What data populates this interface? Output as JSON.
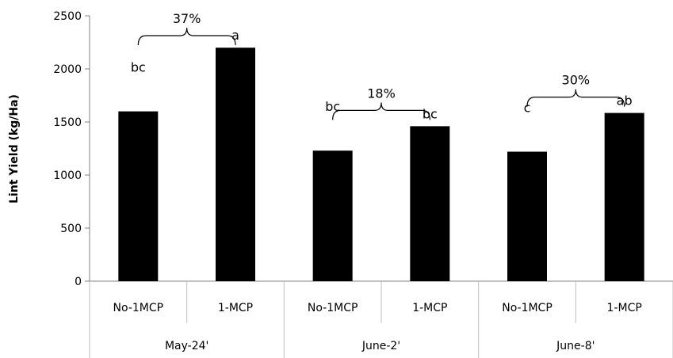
{
  "chart_data": {
    "type": "bar",
    "xlabel": "",
    "ylabel": "Lint Yield (kg/Ha)",
    "ylim": [
      0,
      2500
    ],
    "yticks": [
      0,
      500,
      1000,
      1500,
      2000,
      2500
    ],
    "grid": false,
    "legend": "none",
    "bar_color": "#000000",
    "groups": [
      {
        "label": "May-24'",
        "bars": [
          {
            "category": "No-1MCP",
            "value": 1600,
            "significance": "bc"
          },
          {
            "category": "1-MCP",
            "value": 2200,
            "significance": "a"
          }
        ],
        "increase_label": "37%"
      },
      {
        "label": "June-2'",
        "bars": [
          {
            "category": "No-1MCP",
            "value": 1230,
            "significance": "bc"
          },
          {
            "category": "1-MCP",
            "value": 1460,
            "significance": "bc"
          }
        ],
        "increase_label": "18%"
      },
      {
        "label": "June-8'",
        "bars": [
          {
            "category": "No-1MCP",
            "value": 1220,
            "significance": "c"
          },
          {
            "category": "1-MCP",
            "value": 1585,
            "significance": "ab"
          }
        ],
        "increase_label": "30%"
      }
    ]
  }
}
